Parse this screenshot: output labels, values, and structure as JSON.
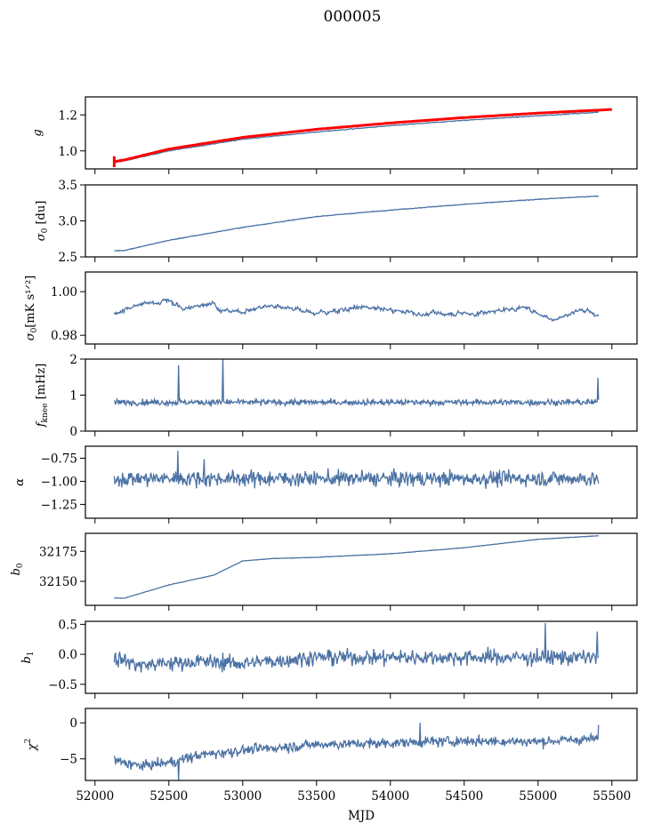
{
  "chart_data": {
    "type": "line",
    "title": "000005",
    "xlabel": "MJD",
    "xlim": [
      51935,
      55670
    ],
    "xticks": [
      52000,
      52500,
      53000,
      53500,
      54000,
      54500,
      55000,
      55500
    ],
    "xtick_labels": [
      "52000",
      "52500",
      "53000",
      "53500",
      "54000",
      "54500",
      "55000",
      "55500"
    ],
    "data_x_range": [
      52130,
      55410
    ],
    "line_color": "#4c72a4",
    "overlay_color": "#ff0000",
    "grid": false,
    "legend": "none",
    "panels": [
      {
        "name": "g",
        "ylabel": "g",
        "ylabel_sub": "",
        "ylim": [
          0.9,
          1.3
        ],
        "yticks": [
          1.0,
          1.2
        ],
        "ytick_labels": [
          "1.0",
          "1.2"
        ],
        "style": "smooth",
        "anchors_x": [
          52130,
          52200,
          52500,
          53000,
          53500,
          54000,
          54500,
          55000,
          55410
        ],
        "anchors_y": [
          0.935,
          0.945,
          1.0,
          1.065,
          1.105,
          1.14,
          1.17,
          1.195,
          1.215
        ],
        "noise": 0.002,
        "overlay": {
          "description": "red fit curve with error bar at start",
          "anchors_x": [
            52130,
            52200,
            52500,
            53000,
            53500,
            54000,
            54500,
            55000,
            55500
          ],
          "anchors_y": [
            0.94,
            0.95,
            1.01,
            1.075,
            1.12,
            1.155,
            1.185,
            1.21,
            1.23
          ],
          "errorbar_x": 52130,
          "errorbar_range": [
            0.91,
            0.97
          ]
        }
      },
      {
        "name": "sigma0-du",
        "ylabel": "σ",
        "ylabel_sub": "0",
        "ylabel_unit": " [du]",
        "ylim": [
          2.5,
          3.5
        ],
        "yticks": [
          2.5,
          3.0,
          3.5
        ],
        "ytick_labels": [
          "2.5",
          "3.0",
          "3.5"
        ],
        "style": "smooth",
        "anchors_x": [
          52130,
          52200,
          52500,
          53000,
          53500,
          54000,
          54500,
          55000,
          55410
        ],
        "anchors_y": [
          2.585,
          2.59,
          2.73,
          2.91,
          3.06,
          3.15,
          3.23,
          3.3,
          3.345
        ],
        "noise": 0.004
      },
      {
        "name": "sigma0-mk",
        "ylabel": "σ",
        "ylabel_sub": "0",
        "ylabel_unit": "[mK s^1/2]",
        "ylim": [
          0.976,
          1.009
        ],
        "yticks": [
          0.98,
          1.0
        ],
        "ytick_labels": [
          "0.98",
          "1.00"
        ],
        "style": "wander",
        "anchors_x": [
          52130,
          52300,
          52500,
          52600,
          52800,
          52850,
          53000,
          53200,
          53500,
          53800,
          54200,
          54600,
          54900,
          55100,
          55300,
          55410
        ],
        "anchors_y": [
          0.99,
          0.994,
          0.996,
          0.992,
          0.995,
          0.991,
          0.991,
          0.994,
          0.99,
          0.993,
          0.99,
          0.99,
          0.993,
          0.987,
          0.992,
          0.989
        ],
        "noise": 0.0012
      },
      {
        "name": "fknee",
        "ylabel": "f",
        "ylabel_sub": "knee",
        "ylabel_unit": " [mHz]",
        "ylim": [
          0,
          2
        ],
        "yticks": [
          0,
          1,
          2
        ],
        "ytick_labels": [
          "0",
          "1",
          "2"
        ],
        "style": "noise",
        "mean": 0.8,
        "noise": 0.07,
        "spikes": [
          [
            52565,
            1.83
          ],
          [
            52865,
            2.05
          ],
          [
            55405,
            1.48
          ]
        ]
      },
      {
        "name": "alpha",
        "ylabel": "α",
        "ylabel_sub": "",
        "ylim": [
          -1.4,
          -0.62
        ],
        "yticks": [
          -1.25,
          -1.0,
          -0.75
        ],
        "ytick_labels": [
          "−1.25",
          "−1.00",
          "−0.75"
        ],
        "style": "noise",
        "mean": -0.97,
        "noise": 0.07,
        "spikes": [
          [
            52560,
            -0.67
          ],
          [
            52740,
            -0.76
          ]
        ]
      },
      {
        "name": "b0",
        "ylabel": "b",
        "ylabel_sub": "0",
        "ylim": [
          32130,
          32190
        ],
        "yticks": [
          32150,
          32175
        ],
        "ytick_labels": [
          "32150",
          "32175"
        ],
        "style": "smooth",
        "anchors_x": [
          52130,
          52200,
          52500,
          52800,
          53000,
          53200,
          53500,
          54000,
          54500,
          55000,
          55410
        ],
        "anchors_y": [
          32136,
          32136,
          32147,
          32155,
          32167,
          32169,
          32170,
          32173,
          32178,
          32185,
          32188
        ],
        "noise": 0.15
      },
      {
        "name": "b1",
        "ylabel": "b",
        "ylabel_sub": "1",
        "ylim": [
          -0.65,
          0.55
        ],
        "yticks": [
          -0.5,
          0.0,
          0.5
        ],
        "ytick_labels": [
          "−0.5",
          "0.0",
          "0.5"
        ],
        "style": "noise-trend",
        "anchors_x": [
          52130,
          52300,
          52700,
          53000,
          53500,
          54500,
          55410
        ],
        "anchors_y": [
          -0.05,
          -0.18,
          -0.12,
          -0.15,
          -0.05,
          -0.05,
          -0.05
        ],
        "noise": 0.11,
        "spikes": [
          [
            55050,
            0.52
          ],
          [
            55400,
            0.38
          ]
        ]
      },
      {
        "name": "chi2",
        "ylabel": "χ",
        "ylabel_sup": "2",
        "ylim": [
          -8,
          2
        ],
        "yticks": [
          -5,
          0
        ],
        "ytick_labels": [
          "−5",
          "0"
        ],
        "style": "noise-trend",
        "anchors_x": [
          52130,
          52300,
          52500,
          52700,
          53000,
          53500,
          54000,
          54500,
          55000,
          55410
        ],
        "anchors_y": [
          -5.2,
          -6.0,
          -5.5,
          -4.5,
          -3.8,
          -3.0,
          -2.8,
          -2.5,
          -2.6,
          -2.2
        ],
        "noise": 0.6,
        "spikes": [
          [
            52565,
            -8.0
          ],
          [
            54200,
            0.0
          ],
          [
            55410,
            -0.3
          ]
        ]
      }
    ]
  }
}
